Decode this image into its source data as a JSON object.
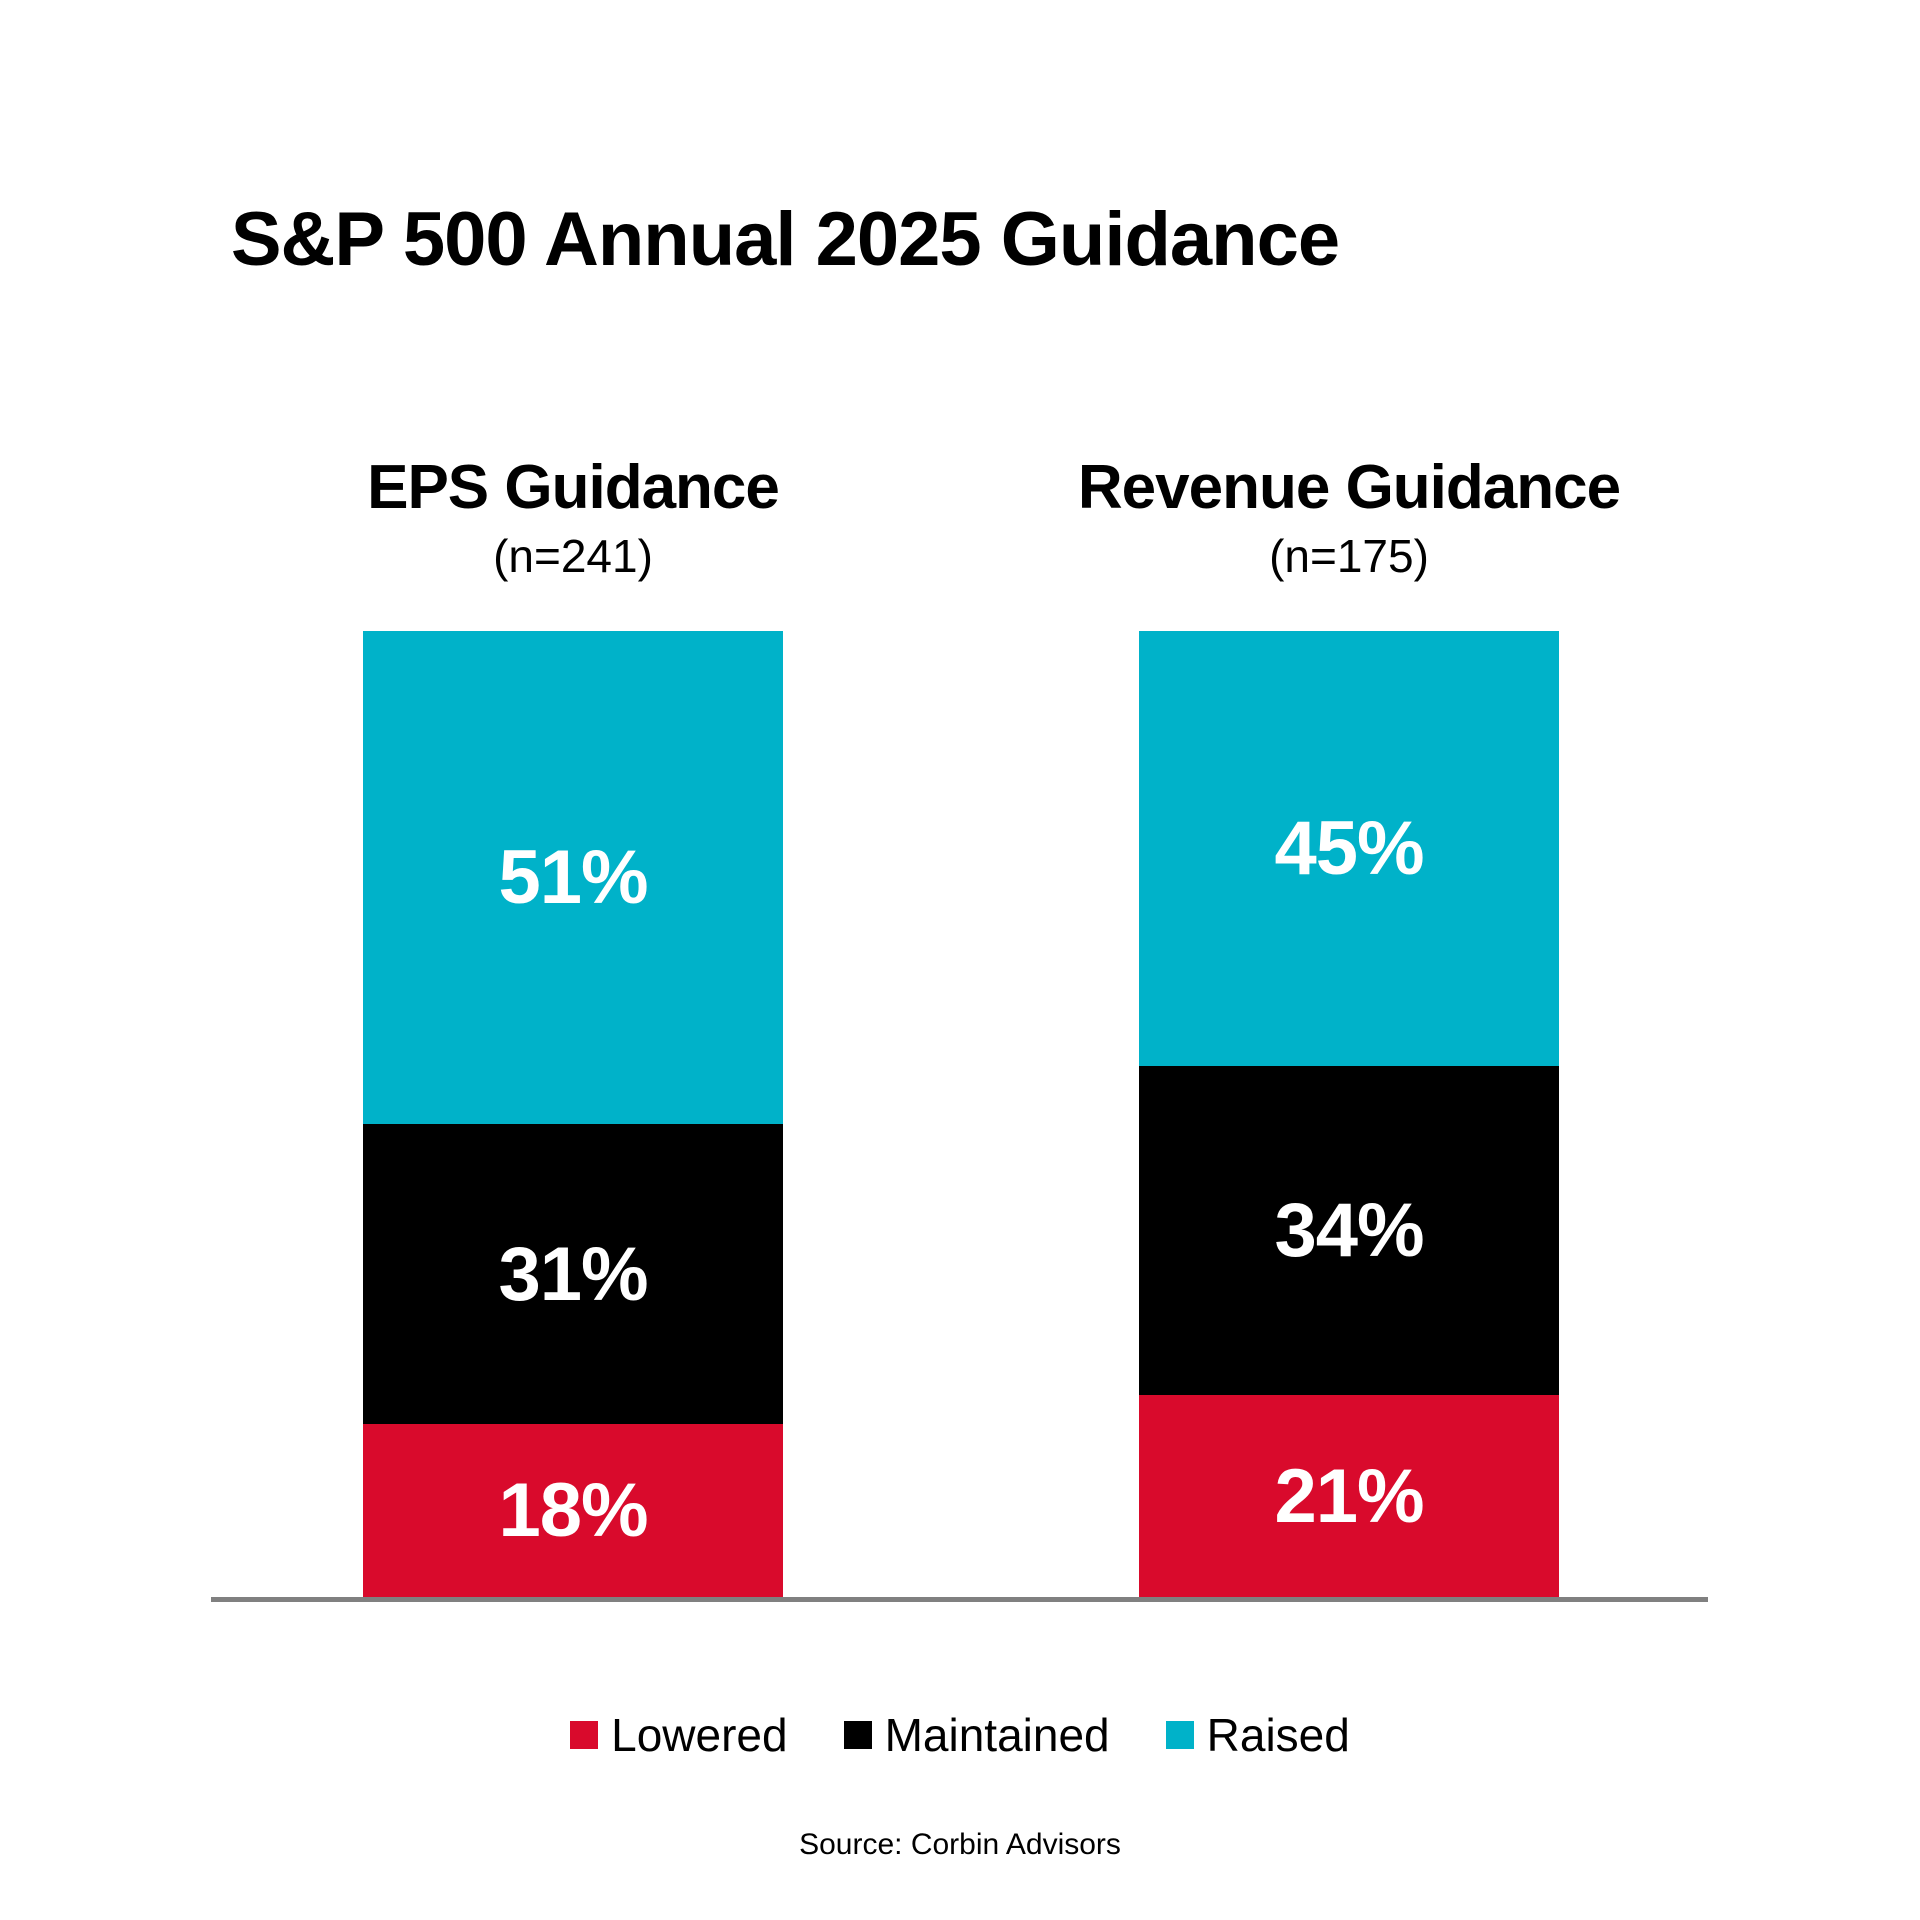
{
  "chart_data": {
    "type": "bar",
    "subtype": "stacked-100-percent-column",
    "title": "S&P 500 Annual 2025 Guidance",
    "categories": [
      "EPS Guidance",
      "Revenue Guidance"
    ],
    "category_subtitles": [
      "(n=241)",
      "(n=175)"
    ],
    "series": [
      {
        "name": "Lowered",
        "color": "#D90A2C",
        "values": [
          18,
          21
        ]
      },
      {
        "name": "Maintained",
        "color": "#000000",
        "values": [
          31,
          34
        ]
      },
      {
        "name": "Raised",
        "color": "#00B2C9",
        "values": [
          51,
          45
        ]
      }
    ],
    "value_suffix": "%",
    "ylim": [
      0,
      100
    ],
    "grid": false,
    "legend_position": "bottom",
    "legend_order": [
      "Lowered",
      "Maintained",
      "Raised"
    ],
    "data_label_color": "#FFFFFF",
    "axis_line_color": "#808080",
    "source": "Source: Corbin Advisors"
  }
}
